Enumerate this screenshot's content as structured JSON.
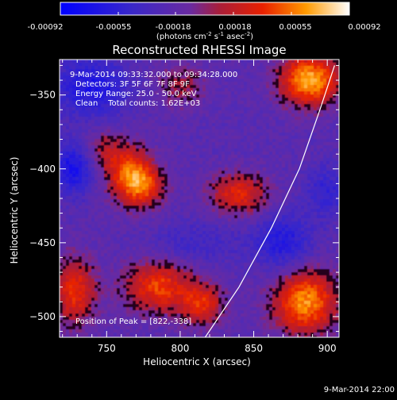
{
  "colorbar": {
    "ticks": [
      "-0.00092",
      "-0.00055",
      "-0.00018",
      "0.00018",
      "0.00055",
      "0.00092"
    ],
    "units_label": "(photons cm",
    "units_sup1": "-2",
    "units_mid1": " s",
    "units_sup2": "-1",
    "units_mid2": " asec",
    "units_sup3": "-2",
    "units_end": ")"
  },
  "plot": {
    "title": "Reconstructed RHESSI Image",
    "annotations": [
      "9-Mar-2014 09:33:32.000 to 09:34:28.000",
      "Detectors: 3F 5F 6F 7F 8F 9F",
      "Energy Range: 25.0 - 50.0 keV",
      "Clean    Total counts: 1.62E+03"
    ],
    "peak_label": "Position of Peak = [822,-338]",
    "footer": "9-Mar-2014 22:00"
  },
  "chart_data": {
    "type": "heatmap",
    "title": "Reconstructed RHESSI Image",
    "xlabel": "Heliocentric X (arcsec)",
    "ylabel": "Heliocentric Y (arcsec)",
    "xlim": [
      718,
      908
    ],
    "ylim": [
      -514,
      -326
    ],
    "x_ticks": [
      750,
      800,
      850,
      900
    ],
    "y_ticks": [
      -350,
      -400,
      -450,
      -500
    ],
    "colorbar_range": [
      -0.00092,
      0.00092
    ],
    "colorbar_ticks": [
      -0.00092,
      -0.00055,
      -0.00018,
      0.00018,
      0.00055,
      0.00092
    ],
    "peak_position": [
      822,
      -338
    ],
    "limb_curve": [
      [
        817,
        -514
      ],
      [
        840,
        -480
      ],
      [
        862,
        -440
      ],
      [
        881,
        -400
      ],
      [
        895,
        -360
      ],
      [
        905,
        -330
      ]
    ],
    "sources": [
      {
        "x": 888,
        "y": -340,
        "amplitude": 0.00092,
        "sx": 14,
        "sy": 12
      },
      {
        "x": 765,
        "y": -402,
        "amplitude": 0.0006,
        "sx": 11,
        "sy": 13
      },
      {
        "x": 775,
        "y": -412,
        "amplitude": 0.00055,
        "sx": 10,
        "sy": 10
      },
      {
        "x": 840,
        "y": -417,
        "amplitude": 0.00055,
        "sx": 14,
        "sy": 10
      },
      {
        "x": 800,
        "y": -344,
        "amplitude": 0.0003,
        "sx": 12,
        "sy": 10
      },
      {
        "x": 748,
        "y": -388,
        "amplitude": 0.0003,
        "sx": 9,
        "sy": 10
      },
      {
        "x": 885,
        "y": -490,
        "amplitude": 0.00085,
        "sx": 15,
        "sy": 15
      },
      {
        "x": 785,
        "y": -480,
        "amplitude": 0.00065,
        "sx": 16,
        "sy": 12
      },
      {
        "x": 815,
        "y": -492,
        "amplitude": 0.00055,
        "sx": 10,
        "sy": 10
      },
      {
        "x": 728,
        "y": -483,
        "amplitude": 0.0006,
        "sx": 10,
        "sy": 16
      },
      {
        "x": 740,
        "y": -345,
        "amplitude": -0.00045,
        "sx": 18,
        "sy": 14
      },
      {
        "x": 728,
        "y": -400,
        "amplitude": -0.0005,
        "sx": 10,
        "sy": 12
      },
      {
        "x": 870,
        "y": -450,
        "amplitude": -0.0004,
        "sx": 14,
        "sy": 14
      },
      {
        "x": 810,
        "y": -450,
        "amplitude": -0.0002,
        "sx": 20,
        "sy": 10
      },
      {
        "x": 900,
        "y": -415,
        "amplitude": -0.0003,
        "sx": 10,
        "sy": 12
      }
    ]
  }
}
